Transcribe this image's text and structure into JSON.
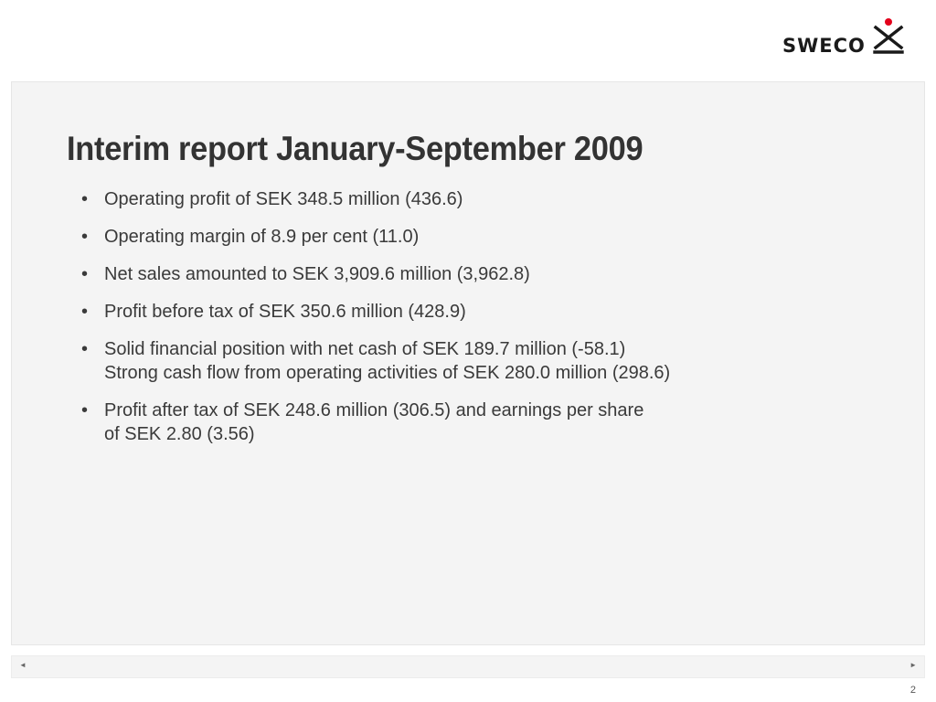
{
  "header": {
    "logo_text": "SWECO",
    "accent_color": "#e3001b"
  },
  "slide": {
    "title": "Interim report January-September 2009",
    "bullets": [
      {
        "lines": [
          "Operating profit of SEK 348.5 million (436.6)"
        ]
      },
      {
        "lines": [
          "Operating margin of 8.9 per cent (11.0)"
        ]
      },
      {
        "lines": [
          "Net sales amounted to SEK 3,909.6 million (3,962.8)"
        ]
      },
      {
        "lines": [
          "Profit before tax of SEK 350.6 million (428.9)"
        ]
      },
      {
        "lines": [
          "Solid financial position with net cash of SEK 189.7 million (-58.1)",
          "Strong cash flow from operating activities of SEK 280.0 million (298.6)"
        ]
      },
      {
        "lines": [
          "Profit after tax of SEK 248.6 million (306.5) and earnings per share",
          "of SEK 2.80 (3.56)"
        ]
      }
    ]
  },
  "navigation": {
    "prev_symbol": "◄",
    "next_symbol": "►"
  },
  "footer": {
    "page_number": "2"
  }
}
